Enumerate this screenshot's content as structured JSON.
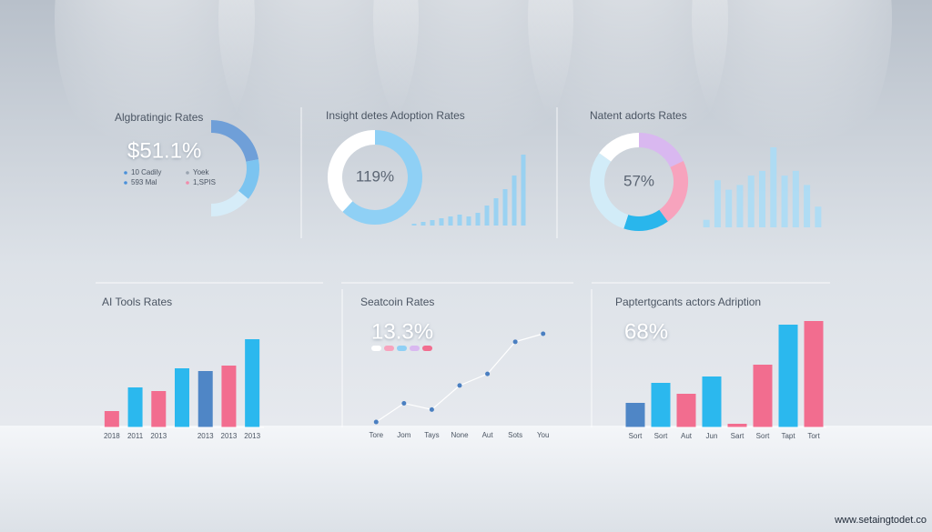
{
  "chart_data": [
    {
      "type": "donut",
      "title": "Algbratingic Rates",
      "headline": "$51.1%",
      "values": [
        22,
        14,
        14
      ],
      "colors": [
        "#6f9fd8",
        "#7cc4f0",
        "#d6ecf8"
      ],
      "legend": [
        "10 Cadily",
        "Yoek",
        "593 Mal",
        "1,SPIS"
      ],
      "legend_colors": [
        "#4a90d9",
        "#9aa4b0",
        "#4a90d9",
        "#f28bab"
      ]
    },
    {
      "type": "donut",
      "title": "Insight detes Adoption Rates",
      "center_label": "119%",
      "values": [
        62,
        38
      ],
      "colors": [
        "#8fd0f5",
        "#ffffff"
      ]
    },
    {
      "type": "bar",
      "values": [
        2,
        4,
        6,
        8,
        10,
        12,
        10,
        14,
        22,
        30,
        40,
        55,
        78
      ],
      "color": "#8fd0f5"
    },
    {
      "type": "donut",
      "title": "Natent adorts Rates",
      "center_label": "57%",
      "values": [
        18,
        22,
        15,
        30,
        15
      ],
      "colors": [
        "#d9b8f0",
        "#f7a3bd",
        "#29b6ec",
        "#d2ecf8",
        "#ffffff"
      ]
    },
    {
      "type": "bar",
      "values": [
        8,
        50,
        40,
        45,
        55,
        60,
        85,
        55,
        60,
        45,
        22
      ],
      "color": "#a8dcf7"
    },
    {
      "type": "bar",
      "title": "AI Tools Rates",
      "categories": [
        "2018",
        "2011",
        "2013",
        null,
        "2013",
        "2013",
        "2013"
      ],
      "values": [
        18,
        44,
        40,
        65,
        62,
        68,
        97
      ],
      "colors": [
        "#f26d8f",
        "#2bb8ee",
        "#f26d8f",
        "#2bb8ee",
        "#4f86c6",
        "#f26d8f",
        "#2bb8ee"
      ]
    },
    {
      "type": "line",
      "title": "Seatcoin Rates",
      "headline": "13.3%",
      "categories": [
        "Tore",
        "Jom",
        "Tays",
        "None",
        "Aut",
        "Sots",
        "You"
      ],
      "values": [
        3,
        24,
        17,
        44,
        57,
        93,
        102
      ],
      "color": "#4a7fc1",
      "swatches": [
        "#ffffff",
        "#f7a3bd",
        "#8fd0f5",
        "#d9b8f0",
        "#f26d8f"
      ]
    },
    {
      "type": "bar",
      "title": "Paptertgcants actors Adription",
      "headline": "68%",
      "categories": [
        "Sort",
        "Sort",
        "Aut",
        "Jun",
        "Sart",
        "Sort",
        "Tapt",
        "Tort"
      ],
      "values": [
        27,
        49,
        37,
        56,
        4,
        69,
        113,
        117
      ],
      "colors": [
        "#4f86c6",
        "#2bb8ee",
        "#f26d8f",
        "#2bb8ee",
        "#f26d8f",
        "#f26d8f",
        "#2bb8ee",
        "#f26d8f"
      ]
    }
  ],
  "watermark": "www.setaingtodet.co"
}
